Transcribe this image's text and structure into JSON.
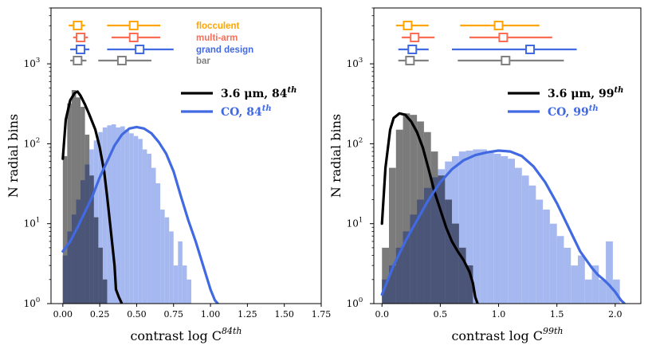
{
  "chart_data": [
    {
      "type": "histogram",
      "xlabel": "contrast log C",
      "xlabel_sup": "84th",
      "ylabel": "N radial bins",
      "xlim": [
        -0.08,
        1.75
      ],
      "ylim": [
        1,
        5000
      ],
      "yscale": "log",
      "xticks": [
        0.0,
        0.25,
        0.5,
        0.75,
        1.0,
        1.25,
        1.5,
        1.75
      ],
      "xtick_labels": [
        "0.00",
        "0.25",
        "0.50",
        "0.75",
        "1.00",
        "1.25",
        "1.50",
        "1.75"
      ],
      "ytick_labels": [
        {
          "base": "10",
          "exp": "0"
        },
        {
          "base": "10",
          "exp": "1"
        },
        {
          "base": "10",
          "exp": "2"
        },
        {
          "base": "10",
          "exp": "3"
        }
      ],
      "legend": {
        "position": "upper-right",
        "entries": [
          {
            "name_main": "3.6 μm, 84",
            "name_sup": "th",
            "color": "#000000"
          },
          {
            "name_main": "CO, 84",
            "name_sup": "th",
            "color": "#4169e1"
          }
        ]
      },
      "type_labels": [
        {
          "name": "flocculent",
          "color": "#ffa500"
        },
        {
          "name": "multi-arm",
          "color": "#fa6e55"
        },
        {
          "name": "grand design",
          "color": "#4169e1"
        },
        {
          "name": "bar",
          "color": "#808080"
        }
      ],
      "range_markers": [
        {
          "name": "flocculent",
          "star": {
            "lo": 0.04,
            "med": 0.1,
            "hi": 0.15
          },
          "co": {
            "lo": 0.3,
            "med": 0.48,
            "hi": 0.66
          }
        },
        {
          "name": "multi-arm",
          "star": {
            "lo": 0.07,
            "med": 0.12,
            "hi": 0.17
          },
          "co": {
            "lo": 0.33,
            "med": 0.48,
            "hi": 0.66
          }
        },
        {
          "name": "grand design",
          "star": {
            "lo": 0.05,
            "med": 0.12,
            "hi": 0.18
          },
          "co": {
            "lo": 0.3,
            "med": 0.52,
            "hi": 0.75
          }
        },
        {
          "name": "bar",
          "star": {
            "lo": 0.05,
            "med": 0.1,
            "hi": 0.16
          },
          "co": {
            "lo": 0.24,
            "med": 0.4,
            "hi": 0.6
          }
        }
      ],
      "histograms": [
        {
          "name": "3.6 μm",
          "color": "#707070",
          "bin_start": 0.0,
          "bin_width": 0.03,
          "counts": [
            70,
            320,
            470,
            380,
            290,
            130,
            40,
            12,
            5,
            2,
            1,
            0
          ]
        },
        {
          "name": "CO",
          "color": "#a0b4ee",
          "bin_start": 0.0,
          "bin_width": 0.03,
          "counts": [
            4,
            8,
            13,
            20,
            35,
            55,
            85,
            110,
            140,
            160,
            170,
            175,
            160,
            165,
            150,
            135,
            125,
            115,
            85,
            75,
            50,
            32,
            15,
            12,
            8,
            3,
            6,
            3,
            2,
            0,
            0,
            0,
            0,
            0,
            0
          ]
        }
      ],
      "curves": [
        {
          "name": "3.6 μm, 84th",
          "color": "#000000",
          "x": [
            0.0,
            0.02,
            0.05,
            0.08,
            0.1,
            0.12,
            0.15,
            0.18,
            0.22,
            0.25,
            0.28,
            0.3,
            0.32,
            0.35,
            0.36,
            0.38,
            0.4
          ],
          "y": [
            65,
            200,
            350,
            430,
            450,
            400,
            310,
            230,
            150,
            90,
            45,
            22,
            10,
            3,
            1.5,
            1.2,
            1.0
          ]
        },
        {
          "name": "CO, 84th",
          "color": "#4169e1",
          "x": [
            0.0,
            0.05,
            0.1,
            0.15,
            0.2,
            0.25,
            0.3,
            0.35,
            0.4,
            0.45,
            0.5,
            0.55,
            0.6,
            0.65,
            0.7,
            0.75,
            0.8,
            0.85,
            0.9,
            0.95,
            1.0,
            1.03,
            1.05
          ],
          "y": [
            4.5,
            6,
            9,
            14,
            22,
            38,
            60,
            95,
            130,
            155,
            162,
            155,
            135,
            105,
            75,
            45,
            22,
            11,
            6,
            3,
            1.5,
            1.1,
            1.0
          ]
        }
      ]
    },
    {
      "type": "histogram",
      "xlabel": "contrast log C",
      "xlabel_sup": "99th",
      "ylabel": "N radial bins",
      "xlim": [
        -0.07,
        2.22
      ],
      "ylim": [
        1,
        5000
      ],
      "yscale": "log",
      "xticks": [
        0.0,
        0.5,
        1.0,
        1.5,
        2.0
      ],
      "xtick_labels": [
        "0.0",
        "0.5",
        "1.0",
        "1.5",
        "2.0"
      ],
      "ytick_labels": [
        {
          "base": "10",
          "exp": "0"
        },
        {
          "base": "10",
          "exp": "1"
        },
        {
          "base": "10",
          "exp": "2"
        },
        {
          "base": "10",
          "exp": "3"
        }
      ],
      "legend": {
        "position": "upper-right",
        "entries": [
          {
            "name_main": "3.6 μm, 99",
            "name_sup": "th",
            "color": "#000000"
          },
          {
            "name_main": "CO, 99",
            "name_sup": "th",
            "color": "#4169e1"
          }
        ]
      },
      "range_markers": [
        {
          "name": "flocculent",
          "star": {
            "lo": 0.12,
            "med": 0.22,
            "hi": 0.4
          },
          "co": {
            "lo": 0.67,
            "med": 1.0,
            "hi": 1.35
          }
        },
        {
          "name": "multi-arm",
          "star": {
            "lo": 0.17,
            "med": 0.28,
            "hi": 0.45
          },
          "co": {
            "lo": 0.75,
            "med": 1.04,
            "hi": 1.46
          }
        },
        {
          "name": "grand design",
          "star": {
            "lo": 0.14,
            "med": 0.26,
            "hi": 0.4
          },
          "co": {
            "lo": 0.6,
            "med": 1.27,
            "hi": 1.67
          }
        },
        {
          "name": "bar",
          "star": {
            "lo": 0.14,
            "med": 0.24,
            "hi": 0.4
          },
          "co": {
            "lo": 0.65,
            "med": 1.06,
            "hi": 1.56
          }
        }
      ],
      "histograms": [
        {
          "name": "3.6 μm",
          "color": "#707070",
          "bin_start": 0.0,
          "bin_width": 0.06,
          "counts": [
            5,
            50,
            150,
            240,
            230,
            190,
            140,
            80,
            40,
            20,
            10,
            5,
            3,
            1,
            0
          ]
        },
        {
          "name": "CO",
          "color": "#a0b4ee",
          "bin_start": 0.0,
          "bin_width": 0.06,
          "counts": [
            2,
            3,
            5,
            8,
            13,
            20,
            28,
            38,
            48,
            60,
            70,
            80,
            82,
            85,
            85,
            80,
            75,
            70,
            65,
            50,
            40,
            30,
            20,
            15,
            10,
            7,
            5,
            3,
            4,
            2,
            3,
            2,
            6,
            2,
            1
          ]
        }
      ],
      "curves": [
        {
          "name": "3.6 μm, 99th",
          "color": "#000000",
          "x": [
            0.0,
            0.03,
            0.07,
            0.1,
            0.15,
            0.2,
            0.25,
            0.3,
            0.35,
            0.4,
            0.45,
            0.5,
            0.55,
            0.6,
            0.65,
            0.7,
            0.75,
            0.78,
            0.8,
            0.82
          ],
          "y": [
            10,
            50,
            150,
            210,
            240,
            230,
            190,
            140,
            90,
            48,
            25,
            15,
            9,
            6,
            4.5,
            3.5,
            2.5,
            1.8,
            1.2,
            1.0
          ]
        },
        {
          "name": "CO, 99th",
          "color": "#4169e1",
          "x": [
            0.0,
            0.1,
            0.2,
            0.3,
            0.4,
            0.5,
            0.6,
            0.7,
            0.8,
            0.9,
            1.0,
            1.1,
            1.2,
            1.3,
            1.4,
            1.5,
            1.6,
            1.7,
            1.8,
            1.85,
            1.9,
            1.95,
            2.0,
            2.05,
            2.08
          ],
          "y": [
            1.3,
            3,
            6,
            11,
            20,
            33,
            48,
            62,
            72,
            78,
            82,
            80,
            70,
            52,
            33,
            18,
            9,
            4.5,
            2.8,
            2.3,
            2.0,
            1.7,
            1.4,
            1.1,
            1.0
          ]
        }
      ]
    }
  ]
}
